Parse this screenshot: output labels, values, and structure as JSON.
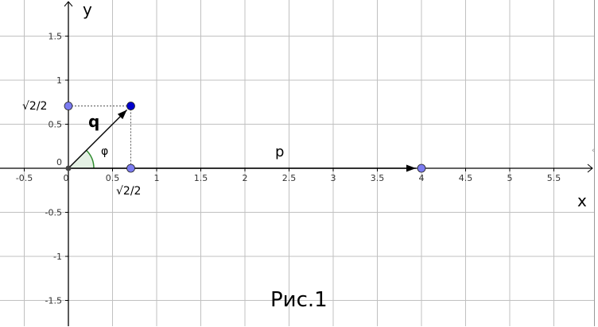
{
  "axes": {
    "x_label": "x",
    "y_label": "y",
    "xlim": [
      -0.78,
      5.98
    ],
    "ylim": [
      -1.8,
      1.91
    ],
    "grid_step": 0.5,
    "grid": true
  },
  "x_ticks": [
    "-0.5",
    "0",
    "0.5",
    "1",
    "1.5",
    "2",
    "2.5",
    "3",
    "3.5",
    "4",
    "4.5",
    "5",
    "5.5"
  ],
  "x_tick_values": [
    -0.5,
    0,
    0.5,
    1,
    1.5,
    2,
    2.5,
    3,
    3.5,
    4,
    4.5,
    5,
    5.5
  ],
  "y_ticks": [
    "1.5",
    "1",
    "0.5",
    "0",
    "-0.5",
    "-1",
    "-1.5"
  ],
  "y_tick_values": [
    1.5,
    1,
    0.5,
    0,
    -0.5,
    -1,
    -1.5
  ],
  "vectors": [
    {
      "name": "q",
      "from": [
        0,
        0
      ],
      "to": [
        0.7071,
        0.7071
      ]
    },
    {
      "name": "p",
      "from": [
        0,
        0
      ],
      "to": [
        4,
        0
      ]
    }
  ],
  "points": [
    {
      "at": [
        0.7071,
        0.7071
      ],
      "color": "#0000cc"
    },
    {
      "at": [
        0,
        0.7071
      ],
      "color": "#7b7bf0"
    },
    {
      "at": [
        0.7071,
        0
      ],
      "color": "#7b7bf0"
    },
    {
      "at": [
        4,
        0
      ],
      "color": "#7b7bf0"
    }
  ],
  "angle_label": "φ",
  "sqrt_label_y": "√2/2",
  "sqrt_label_x": "√2/2",
  "caption": "Рис.1",
  "colors": {
    "grid": "#c0c0c0",
    "axis": "#000000",
    "angle": "#2e8b2e",
    "angle_fill": "#e4f1e4"
  }
}
